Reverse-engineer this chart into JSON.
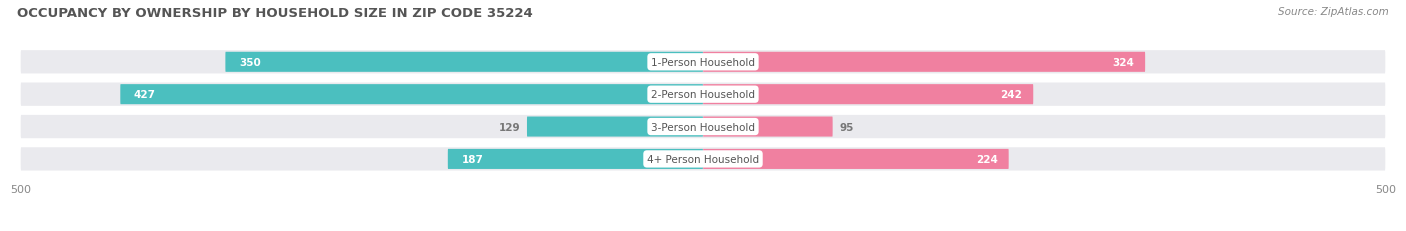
{
  "title": "OCCUPANCY BY OWNERSHIP BY HOUSEHOLD SIZE IN ZIP CODE 35224",
  "source": "Source: ZipAtlas.com",
  "categories": [
    "1-Person Household",
    "2-Person Household",
    "3-Person Household",
    "4+ Person Household"
  ],
  "owner_values": [
    350,
    427,
    129,
    187
  ],
  "renter_values": [
    324,
    242,
    95,
    224
  ],
  "max_val": 500,
  "owner_color": "#4BBFBF",
  "renter_color": "#F080A0",
  "bar_bg_color": "#EAEAEE",
  "title_fontsize": 9.5,
  "source_fontsize": 7.5,
  "bar_label_fontsize": 7.5,
  "legend_fontsize": 8,
  "axis_label_fontsize": 8,
  "category_fontsize": 7.5
}
